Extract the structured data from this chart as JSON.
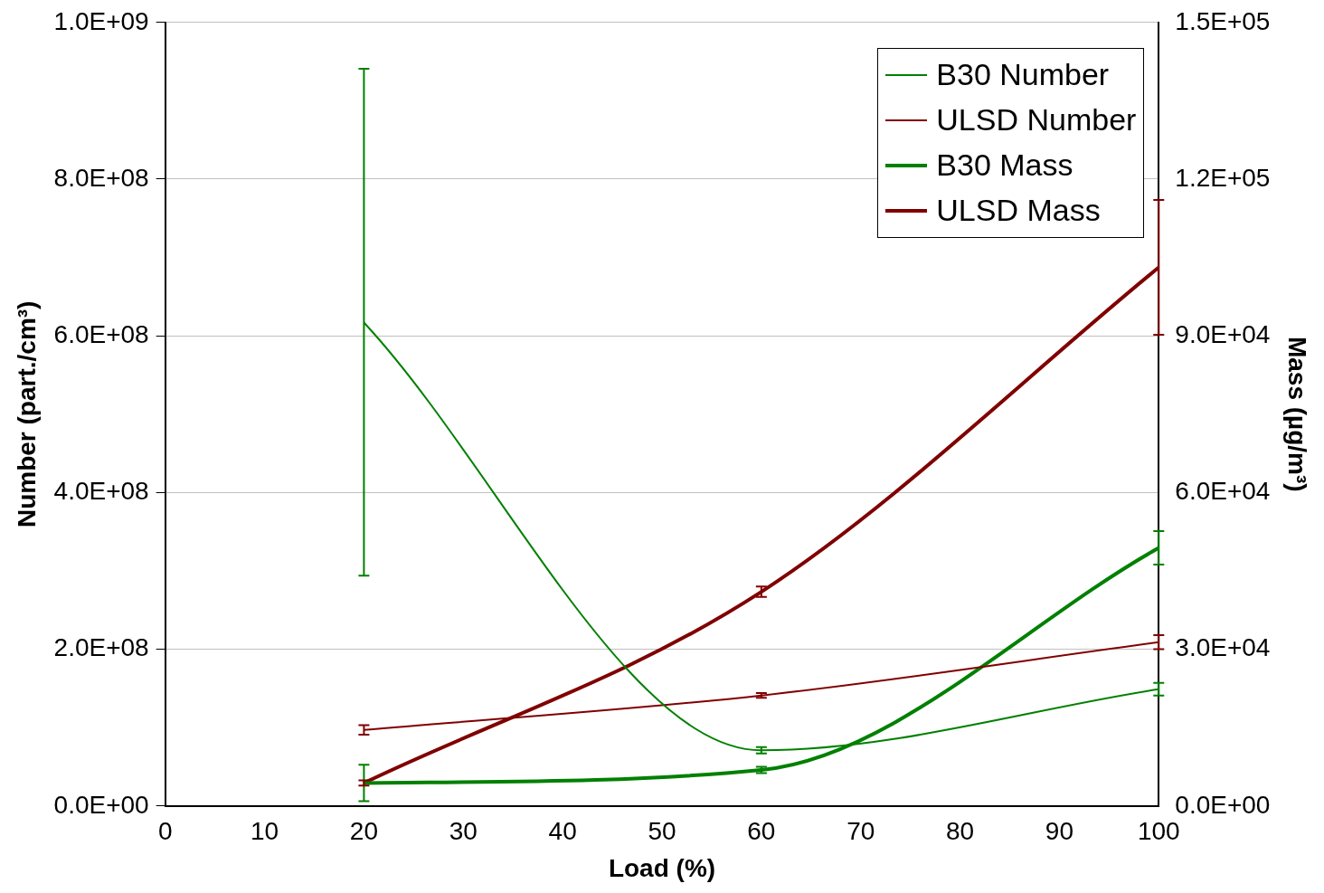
{
  "chart_data": {
    "type": "line",
    "xlabel": "Load (%)",
    "ylabel": "Number (part./cm³)",
    "y2label": "Mass (µg/m³)",
    "x": [
      20,
      60,
      100
    ],
    "xlim": [
      0,
      100
    ],
    "xticks": [
      0,
      10,
      20,
      30,
      40,
      50,
      60,
      70,
      80,
      90,
      100
    ],
    "ylim": [
      0,
      1000000000
    ],
    "yticks": [
      {
        "value": 0,
        "label": "0.0E+00"
      },
      {
        "value": 200000000,
        "label": "2.0E+08"
      },
      {
        "value": 400000000,
        "label": "4.0E+08"
      },
      {
        "value": 600000000,
        "label": "6.0E+08"
      },
      {
        "value": 800000000,
        "label": "8.0E+08"
      },
      {
        "value": 1000000000,
        "label": "1.0E+09"
      }
    ],
    "y2lim": [
      0,
      150000
    ],
    "y2ticks": [
      {
        "value": 0,
        "label": "0.0E+00"
      },
      {
        "value": 30000,
        "label": "3.0E+04"
      },
      {
        "value": 60000,
        "label": "6.0E+04"
      },
      {
        "value": 90000,
        "label": "9.0E+04"
      },
      {
        "value": 120000,
        "label": "1.2E+05"
      },
      {
        "value": 150000,
        "label": "1.5E+05"
      }
    ],
    "grid": "y",
    "legend": "top right",
    "line_style": "solid",
    "series": [
      {
        "name": "B30 Number",
        "color": "#008000",
        "values": [
          617000000,
          71000000,
          149000000
        ],
        "errors": [
          [
            294000000,
            941000000
          ],
          4000000,
          8000000
        ]
      },
      {
        "name": "ULSD Number",
        "color": "#800000",
        "values": [
          97000000,
          141000000,
          209000000
        ],
        "errors": [
          6000000,
          3000000,
          9000000
        ]
      },
      {
        "name": "B30 Mass",
        "color": "#008000",
        "axis": "y2",
        "values": [
          4400,
          6900,
          49400
        ],
        "errors": [
          3500,
          600,
          3200
        ]
      },
      {
        "name": "ULSD Mass",
        "color": "#800000",
        "axis": "y2",
        "values": [
          4400,
          41000,
          103100
        ],
        "errors": [
          500,
          1000,
          12900
        ]
      }
    ]
  }
}
